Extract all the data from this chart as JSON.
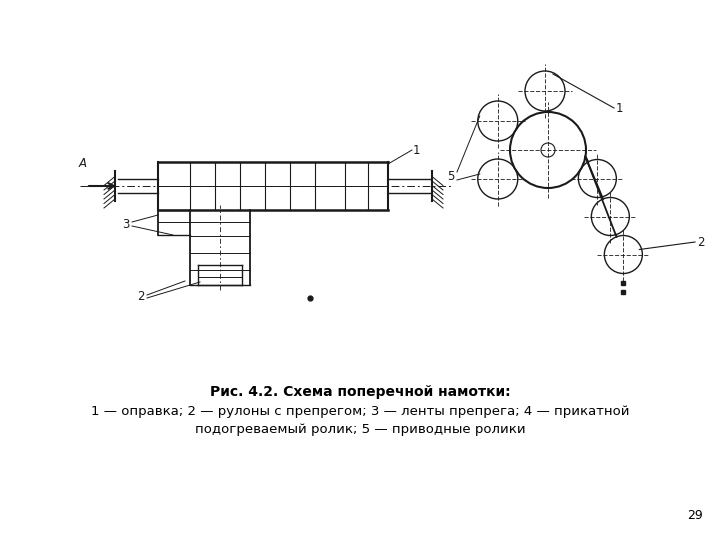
{
  "title": "Рис. 4.2. Схема поперечной намотки:",
  "caption_line2": "1 — оправка; 2 — рулоны с препрегом; 3 — ленты препрега; 4 — прикатной",
  "caption_line3": "подогреваемый ролик; 5 — приводные ролики",
  "page_number": "29",
  "bg_color": "#ffffff",
  "line_color": "#1a1a1a",
  "lw": 1.0
}
